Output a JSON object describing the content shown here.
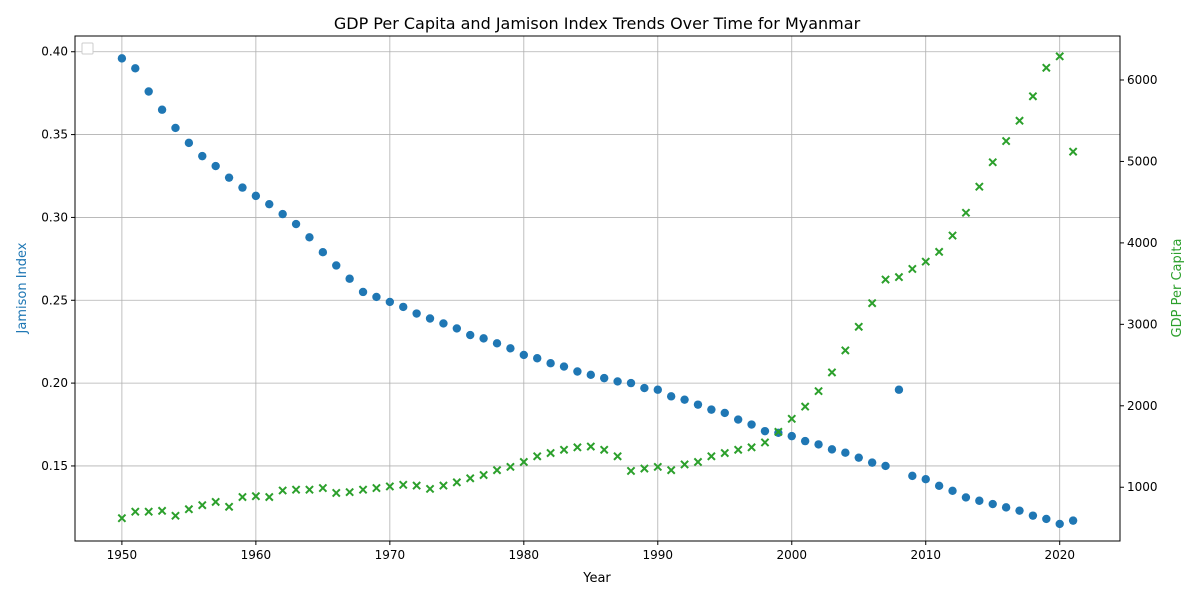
{
  "chart_data": {
    "type": "scatter",
    "title": "GDP Per Capita and Jamison Index Trends Over Time for Myanmar",
    "xlabel": "Year",
    "ylabel_left": "Jamison Index",
    "ylabel_right": "GDP Per Capita",
    "xlim": [
      1946.5,
      2024.5
    ],
    "ylim_left": [
      0.1047,
      0.4095
    ],
    "ylim_right": [
      340,
      6540
    ],
    "x_ticks": [
      1950,
      1960,
      1970,
      1980,
      1990,
      2000,
      2010,
      2020
    ],
    "y_ticks_left": [
      0.15,
      0.2,
      0.25,
      0.3,
      0.35,
      0.4
    ],
    "y_tick_labels_left": [
      "0.15",
      "0.20",
      "0.25",
      "0.30",
      "0.35",
      "0.40"
    ],
    "y_ticks_right": [
      1000,
      2000,
      3000,
      4000,
      5000,
      6000
    ],
    "y_tick_labels_right": [
      "1000",
      "2000",
      "3000",
      "4000",
      "5000",
      "6000"
    ],
    "grid": true,
    "legend": "top-left (empty)",
    "colors": {
      "jamison": "#1f77b4",
      "gdp": "#2ca02c",
      "grid": "#b0b0b0"
    },
    "years": [
      1950,
      1951,
      1952,
      1953,
      1954,
      1955,
      1956,
      1957,
      1958,
      1959,
      1960,
      1961,
      1962,
      1963,
      1964,
      1965,
      1966,
      1967,
      1968,
      1969,
      1970,
      1971,
      1972,
      1973,
      1974,
      1975,
      1976,
      1977,
      1978,
      1979,
      1980,
      1981,
      1982,
      1983,
      1984,
      1985,
      1986,
      1987,
      1988,
      1989,
      1990,
      1991,
      1992,
      1993,
      1994,
      1995,
      1996,
      1997,
      1998,
      1999,
      2000,
      2001,
      2002,
      2003,
      2004,
      2005,
      2006,
      2007,
      2008,
      2009,
      2010,
      2011,
      2012,
      2013,
      2014,
      2015,
      2016,
      2017,
      2018,
      2019,
      2020,
      2021
    ],
    "jamison_index": [
      0.396,
      0.39,
      0.376,
      0.365,
      0.354,
      0.345,
      0.337,
      0.331,
      0.324,
      0.318,
      0.313,
      0.308,
      0.302,
      0.296,
      0.288,
      0.279,
      0.271,
      0.263,
      0.255,
      0.252,
      0.249,
      0.246,
      0.242,
      0.239,
      0.236,
      0.233,
      0.229,
      0.227,
      0.224,
      0.221,
      0.217,
      0.215,
      0.212,
      0.21,
      0.207,
      0.205,
      0.203,
      0.201,
      0.2,
      0.197,
      0.196,
      0.192,
      0.19,
      0.187,
      0.184,
      0.182,
      0.178,
      0.175,
      0.171,
      0.17,
      0.168,
      0.165,
      0.163,
      0.16,
      0.158,
      0.155,
      0.152,
      0.15,
      0.196,
      0.144,
      0.142,
      0.138,
      0.135,
      0.131,
      0.129,
      0.127,
      0.125,
      0.123,
      0.12,
      0.118,
      0.115,
      0.117
    ],
    "gdp_per_capita": [
      620,
      700,
      700,
      710,
      650,
      730,
      780,
      820,
      760,
      880,
      890,
      880,
      960,
      970,
      970,
      990,
      930,
      940,
      970,
      990,
      1010,
      1030,
      1020,
      980,
      1020,
      1060,
      1110,
      1150,
      1210,
      1250,
      1310,
      1380,
      1420,
      1460,
      1490,
      1500,
      1460,
      1380,
      1200,
      1230,
      1250,
      1210,
      1280,
      1310,
      1380,
      1420,
      1460,
      1490,
      1550,
      1680,
      1840,
      1990,
      2180,
      2410,
      2680,
      2970,
      3260,
      3550,
      3580,
      3680,
      3770,
      3890,
      4090,
      4370,
      4690,
      4990,
      5250,
      5500,
      5800,
      6150,
      6290,
      5120
    ]
  }
}
